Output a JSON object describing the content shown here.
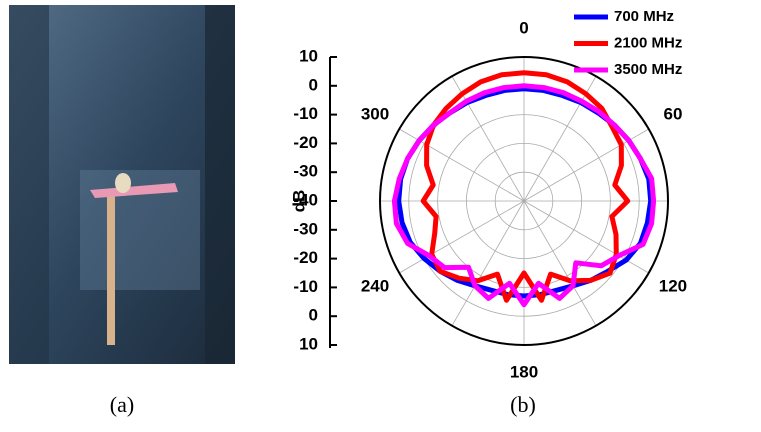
{
  "chart_data": {
    "type": "polar",
    "axis_label": "dB",
    "theta": [
      0,
      10,
      20,
      30,
      40,
      50,
      60,
      70,
      80,
      90,
      100,
      110,
      120,
      130,
      140,
      150,
      160,
      170,
      180,
      190,
      200,
      210,
      220,
      230,
      240,
      250,
      260,
      270,
      280,
      290,
      300,
      310,
      320,
      330,
      340,
      350
    ],
    "angle_ticks": [
      0,
      60,
      120,
      180,
      240,
      300
    ],
    "rlim": [
      -40,
      10
    ],
    "rticks": [
      -40,
      -30,
      -20,
      -10,
      0,
      10
    ],
    "grid": true,
    "legend": "upper right",
    "series": [
      {
        "name": "700 MHz",
        "color": "#0000ff",
        "values": [
          -1,
          -1,
          -1,
          -0.5,
          0,
          1,
          2,
          3,
          4,
          4,
          3.5,
          3,
          1,
          -2,
          -4,
          -6,
          -7,
          -7,
          -7,
          -7,
          -7,
          -6,
          -4,
          -2,
          0,
          2,
          3,
          3.5,
          3.5,
          3,
          2,
          1,
          0,
          -0.5,
          -1,
          -1
        ]
      },
      {
        "name": "2100 MHz",
        "color": "#ff0000",
        "values": [
          4.5,
          4.5,
          4,
          3,
          2,
          0,
          -1,
          -4,
          -8,
          -4,
          -9,
          -6,
          -3,
          -1,
          -4,
          -8,
          -13,
          -5,
          -15,
          -5,
          -13,
          -8,
          -5,
          -2,
          -3,
          -7,
          -9,
          -5,
          -8,
          -4,
          -1,
          1,
          2,
          3,
          4,
          4.5
        ]
      },
      {
        "name": "3500 MHz",
        "color": "#ff00ff",
        "values": [
          0,
          0,
          0,
          0,
          0.5,
          1,
          2,
          3,
          5,
          5,
          5,
          4,
          -2,
          -5,
          -12,
          -6,
          -4,
          -11,
          -4,
          -11,
          -4,
          -6,
          -10,
          -4,
          -2,
          3,
          5,
          5,
          4,
          3,
          2,
          1,
          0,
          0,
          0,
          0
        ]
      }
    ]
  },
  "captions": [
    "(a)",
    "(b)"
  ]
}
